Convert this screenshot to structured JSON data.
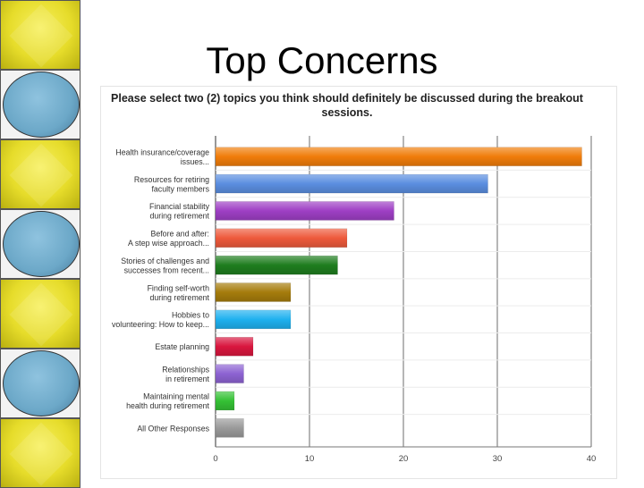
{
  "slide": {
    "title": "Top Concerns"
  },
  "sidebar": {
    "tiles": [
      "yellow",
      "blue",
      "yellow",
      "blue",
      "yellow",
      "blue",
      "yellow"
    ]
  },
  "chart_data": {
    "type": "bar",
    "orientation": "horizontal",
    "title": "Please select two (2) topics you think should definitely be discussed during the breakout sessions.",
    "categories": [
      [
        "Health insurance/coverage",
        "issues..."
      ],
      [
        "Resources for retiring",
        "faculty members"
      ],
      [
        "Financial stability",
        "during retirement"
      ],
      [
        "Before and after:",
        "A step wise approach..."
      ],
      [
        "Stories of challenges and",
        "successes from recent..."
      ],
      [
        "Finding self-worth",
        "during retirement"
      ],
      [
        "Hobbies to",
        "volunteering: How to keep..."
      ],
      [
        "Estate planning"
      ],
      [
        "Relationships",
        "in retirement"
      ],
      [
        "Maintaining mental",
        "health during retirement"
      ],
      [
        "All Other Responses"
      ]
    ],
    "values": [
      39,
      29,
      19,
      14,
      13,
      8,
      8,
      4,
      3,
      2,
      3
    ],
    "colors": [
      "#f07d0a",
      "#5b8ee0",
      "#9e3fc4",
      "#ee5a3c",
      "#1e7d1e",
      "#a57c0c",
      "#1fb1ef",
      "#d9163e",
      "#8d63d2",
      "#35c135",
      "#9a9a9a"
    ],
    "xlim": [
      0,
      40
    ],
    "xticks": [
      "0",
      "10",
      "20",
      "30",
      "40"
    ],
    "grid": true
  }
}
